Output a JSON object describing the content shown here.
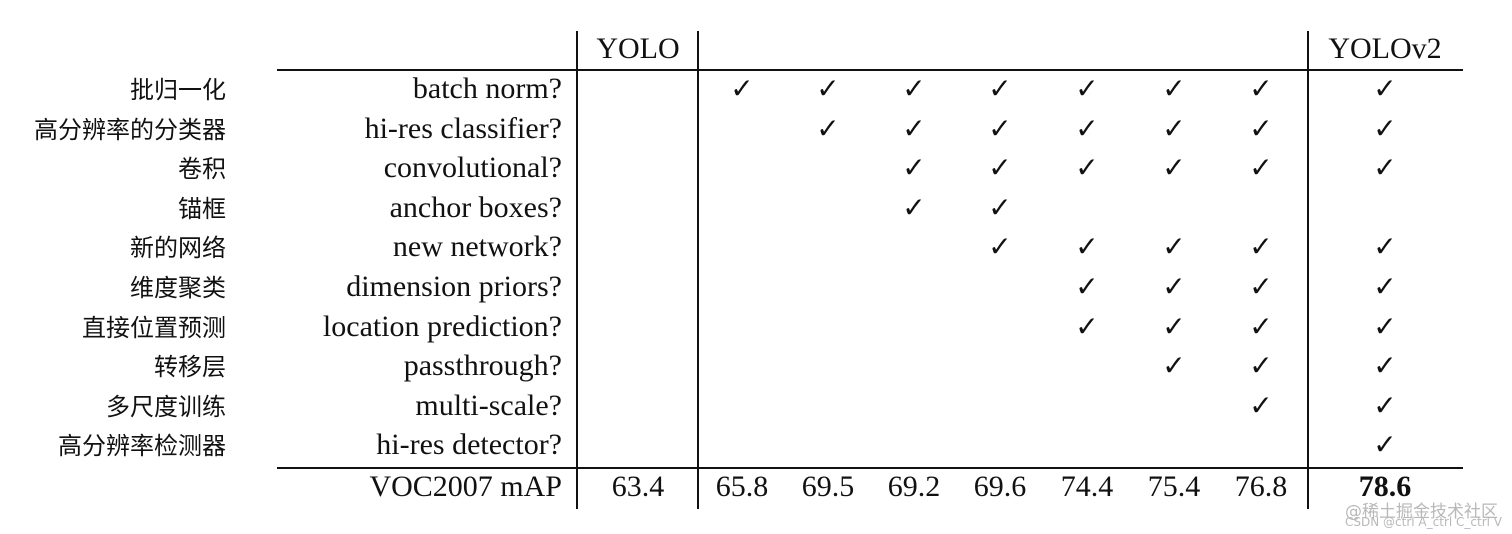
{
  "header": {
    "yolo": "YOLO",
    "yolov2": "YOLOv2"
  },
  "rows": [
    {
      "cn": "批归一化",
      "feature": "batch norm?",
      "checks": [
        false,
        true,
        true,
        true,
        true,
        true,
        true,
        true,
        true
      ]
    },
    {
      "cn": "高分辨率的分类器",
      "feature": "hi-res classifier?",
      "checks": [
        false,
        false,
        true,
        true,
        true,
        true,
        true,
        true,
        true
      ]
    },
    {
      "cn": "卷积",
      "feature": "convolutional?",
      "checks": [
        false,
        false,
        false,
        true,
        true,
        true,
        true,
        true,
        true
      ]
    },
    {
      "cn": "锚框",
      "feature": "anchor boxes?",
      "checks": [
        false,
        false,
        false,
        true,
        true,
        false,
        false,
        false,
        false
      ]
    },
    {
      "cn": "新的网络",
      "feature": "new network?",
      "checks": [
        false,
        false,
        false,
        false,
        true,
        true,
        true,
        true,
        true
      ]
    },
    {
      "cn": "维度聚类",
      "feature": "dimension priors?",
      "checks": [
        false,
        false,
        false,
        false,
        false,
        true,
        true,
        true,
        true
      ]
    },
    {
      "cn": "直接位置预测",
      "feature": "location prediction?",
      "checks": [
        false,
        false,
        false,
        false,
        false,
        true,
        true,
        true,
        true
      ]
    },
    {
      "cn": "转移层",
      "feature": "passthrough?",
      "checks": [
        false,
        false,
        false,
        false,
        false,
        false,
        true,
        true,
        true
      ]
    },
    {
      "cn": "多尺度训练",
      "feature": "multi-scale?",
      "checks": [
        false,
        false,
        false,
        false,
        false,
        false,
        false,
        true,
        true
      ]
    },
    {
      "cn": "高分辨率检测器",
      "feature": "hi-res detector?",
      "checks": [
        false,
        false,
        false,
        false,
        false,
        false,
        false,
        false,
        true
      ]
    }
  ],
  "check_symbol": "✓",
  "metric": {
    "label": "VOC2007 mAP",
    "values": [
      "63.4",
      "65.8",
      "69.5",
      "69.2",
      "69.6",
      "74.4",
      "75.4",
      "76.8",
      "78.6"
    ],
    "best_index": 8
  },
  "watermark": {
    "line1": "@稀土掘金技术社区",
    "line2": "CSDN @ctrl A_ctrl C_ctrl V"
  }
}
